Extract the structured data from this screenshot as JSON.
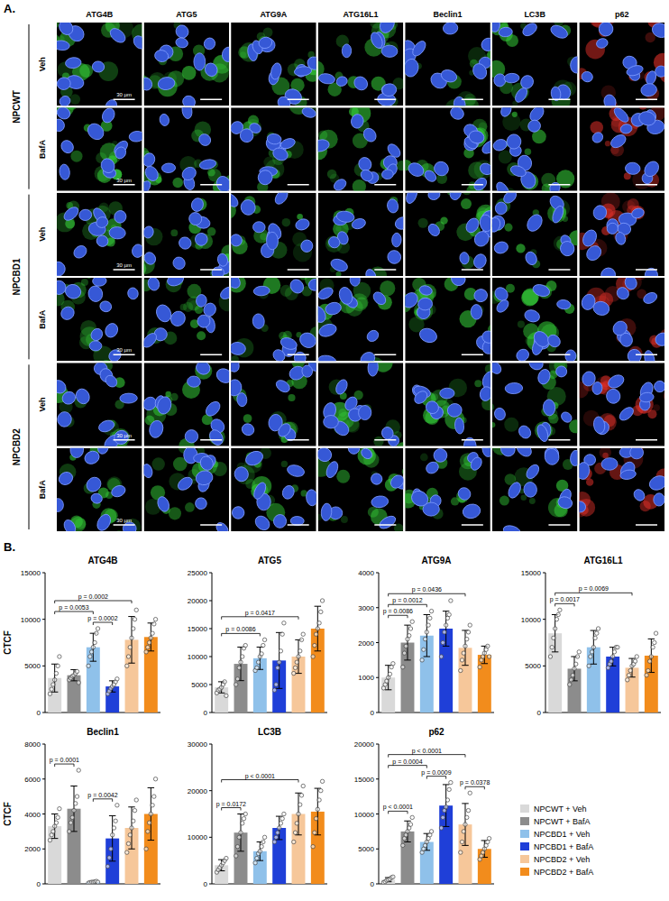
{
  "image_panel": {
    "letter": "A.",
    "columns": [
      "ATG4B",
      "ATG5",
      "ATG9A",
      "ATG16L1",
      "Beclin1",
      "LC3B",
      "p62"
    ],
    "stain_colors": [
      "#36d13a",
      "#36d13a",
      "#36d13a",
      "#36d13a",
      "#36d13a",
      "#36d13a",
      "#e0302a"
    ],
    "groups": [
      "NPCWT",
      "NPCBD1",
      "NPCBD2"
    ],
    "treatments": [
      "Veh",
      "BafA"
    ],
    "scale_bar_label": "30 µm"
  },
  "panel_b_letter": "B.",
  "chart_data": [
    {
      "type": "bar",
      "title": "ATG4B",
      "y_label": "CTCF",
      "legend": "lower right",
      "tick_labels": "y",
      "categories": [
        "NPCWT + Veh",
        "NPCWT + BafA",
        "NPCBD1 + Veh",
        "NPCBD1 + BafA",
        "NPCBD2 + Veh",
        "NPCBD2 + BafA"
      ],
      "colors": [
        "#d9d9d9",
        "#8c8c8c",
        "#8fc1ea",
        "#1f3fd8",
        "#f6c79a",
        "#f28c1c"
      ],
      "values": [
        3700,
        4000,
        7000,
        2800,
        7800,
        8100
      ],
      "errors": [
        1500,
        600,
        1500,
        600,
        2500,
        1500
      ],
      "points": [
        [
          2000,
          2500,
          3000,
          3500,
          4200,
          5000,
          6000
        ],
        [
          3500,
          3700,
          3900,
          4000,
          4200,
          4400,
          3200
        ],
        [
          5000,
          6000,
          6500,
          7000,
          7500,
          8500,
          9000
        ],
        [
          2000,
          2300,
          2600,
          2800,
          3000,
          3300,
          3600
        ],
        [
          5000,
          6000,
          7000,
          8000,
          9000,
          10000,
          11000
        ],
        [
          6500,
          7000,
          7500,
          8000,
          8500,
          9500,
          10000
        ]
      ],
      "ylim": [
        0,
        15000
      ],
      "yticks": [
        0,
        5000,
        10000,
        15000
      ],
      "annotations": [
        {
          "from": 0,
          "to": 4,
          "text": "p = 0.0002"
        },
        {
          "from": 0,
          "to": 2,
          "text": "p = 0.0053"
        },
        {
          "from": 2,
          "to": 3,
          "text": "p = 0.0002"
        }
      ]
    },
    {
      "type": "bar",
      "title": "ATG5",
      "tick_labels": "y",
      "categories": [
        "NPCWT + Veh",
        "NPCWT + BafA",
        "NPCBD1 + Veh",
        "NPCBD1 + BafA",
        "NPCBD2 + Veh",
        "NPCBD2 + BafA"
      ],
      "colors": [
        "#d9d9d9",
        "#8c8c8c",
        "#8fc1ea",
        "#1f3fd8",
        "#f6c79a",
        "#f28c1c"
      ],
      "values": [
        4500,
        8700,
        9700,
        9300,
        10000,
        15000
      ],
      "errors": [
        1000,
        3000,
        2000,
        5000,
        3000,
        4000
      ],
      "points": [
        [
          3500,
          4000,
          4200,
          4500,
          5000,
          5500,
          3000
        ],
        [
          5000,
          6000,
          8000,
          9000,
          10000,
          11500,
          12000
        ],
        [
          7500,
          8000,
          9000,
          10000,
          10500,
          12000,
          13000
        ],
        [
          4000,
          5000,
          8000,
          9000,
          11000,
          14000,
          16000
        ],
        [
          7000,
          8000,
          9000,
          10000,
          11000,
          13000,
          14000
        ],
        [
          10000,
          12000,
          14000,
          15000,
          16000,
          18000,
          20000
        ]
      ],
      "ylim": [
        0,
        25000
      ],
      "yticks": [
        0,
        5000,
        10000,
        15000,
        20000,
        25000
      ],
      "annotations": [
        {
          "from": 0,
          "to": 4,
          "text": "p = 0.0417"
        },
        {
          "from": 0,
          "to": 2,
          "text": "p = 0.0086"
        }
      ]
    },
    {
      "type": "bar",
      "title": "ATG9A",
      "tick_labels": "y",
      "categories": [
        "NPCWT + Veh",
        "NPCWT + BafA",
        "NPCBD1 + Veh",
        "NPCBD1 + BafA",
        "NPCBD2 + Veh",
        "NPCBD2 + BafA"
      ],
      "colors": [
        "#d9d9d9",
        "#8c8c8c",
        "#8fc1ea",
        "#1f3fd8",
        "#f6c79a",
        "#f28c1c"
      ],
      "values": [
        1000,
        2000,
        2200,
        2400,
        1850,
        1650
      ],
      "errors": [
        350,
        500,
        600,
        500,
        500,
        250
      ],
      "points": [
        [
          700,
          800,
          900,
          1000,
          1100,
          1300,
          1400
        ],
        [
          1300,
          1700,
          1900,
          2100,
          2200,
          2400,
          2600
        ],
        [
          1500,
          1800,
          2100,
          2300,
          2500,
          2700,
          2900
        ],
        [
          1600,
          2000,
          2300,
          2500,
          2700,
          2800,
          3200
        ],
        [
          1200,
          1500,
          1700,
          1900,
          2100,
          2300,
          2500
        ],
        [
          1300,
          1500,
          1600,
          1700,
          1800,
          1900,
          1600
        ]
      ],
      "ylim": [
        0,
        4000
      ],
      "yticks": [
        0,
        1000,
        2000,
        3000,
        4000
      ],
      "annotations": [
        {
          "from": 0,
          "to": 1,
          "text": "p = 0.0086"
        },
        {
          "from": 0,
          "to": 2,
          "text": "p = 0.0012"
        },
        {
          "from": 0,
          "to": 4,
          "text": "p = 0.0436"
        }
      ]
    },
    {
      "type": "bar",
      "title": "ATG16L1",
      "tick_labels": "y",
      "categories": [
        "NPCWT + Veh",
        "NPCWT + BafA",
        "NPCBD1 + Veh",
        "NPCBD1 + BafA",
        "NPCBD2 + Veh",
        "NPCBD2 + BafA"
      ],
      "colors": [
        "#d9d9d9",
        "#8c8c8c",
        "#8fc1ea",
        "#1f3fd8",
        "#f6c79a",
        "#f28c1c"
      ],
      "values": [
        8500,
        4700,
        7000,
        6000,
        4800,
        6100
      ],
      "errors": [
        2000,
        1300,
        1800,
        1000,
        1000,
        1800
      ],
      "points": [
        [
          6000,
          7000,
          8000,
          9000,
          10000,
          10500,
          11000
        ],
        [
          3000,
          3500,
          4000,
          4700,
          5200,
          6000,
          6500
        ],
        [
          5000,
          6000,
          6500,
          7000,
          8000,
          8500,
          9000
        ],
        [
          4800,
          5200,
          5500,
          6000,
          6500,
          7000,
          7000
        ],
        [
          3500,
          4000,
          4500,
          5000,
          5200,
          5500,
          6000
        ],
        [
          4000,
          4500,
          5500,
          6000,
          7000,
          7500,
          8500
        ]
      ],
      "ylim": [
        0,
        15000
      ],
      "yticks": [
        0,
        5000,
        10000,
        15000
      ],
      "annotations": [
        {
          "from": 0,
          "to": 1,
          "text": "p = 0.0017"
        },
        {
          "from": 0,
          "to": 4,
          "text": "p = 0.0069"
        }
      ]
    },
    {
      "type": "bar",
      "title": "Beclin1",
      "y_label": "CTCF",
      "tick_labels": "y",
      "categories": [
        "NPCWT + Veh",
        "NPCWT + BafA",
        "NPCBD1 + Veh",
        "NPCBD1 + BafA",
        "NPCBD2 + Veh",
        "NPCBD2 + BafA"
      ],
      "colors": [
        "#d9d9d9",
        "#8c8c8c",
        "#8fc1ea",
        "#1f3fd8",
        "#f6c79a",
        "#f28c1c"
      ],
      "values": [
        3300,
        4300,
        100,
        2600,
        3200,
        4000
      ],
      "errors": [
        700,
        1300,
        50,
        1300,
        1200,
        1500
      ],
      "points": [
        [
          2500,
          2800,
          3000,
          3300,
          3500,
          3800,
          4300
        ],
        [
          3000,
          3500,
          3800,
          4200,
          4600,
          5000,
          6500
        ],
        [
          50,
          80,
          100,
          100,
          120,
          150,
          100
        ],
        [
          1000,
          1500,
          2000,
          2800,
          3200,
          3600,
          4500
        ],
        [
          1800,
          2300,
          2800,
          3200,
          3600,
          4200,
          4800
        ],
        [
          2000,
          3000,
          3500,
          4000,
          4500,
          5000,
          6000
        ]
      ],
      "ylim": [
        0,
        8000
      ],
      "yticks": [
        0,
        2000,
        4000,
        6000,
        8000
      ],
      "annotations": [
        {
          "from": 0,
          "to": 1,
          "text": "p = 0.0001"
        },
        {
          "from": 2,
          "to": 3,
          "text": "p = 0.0042"
        }
      ]
    },
    {
      "type": "bar",
      "title": "LC3B",
      "tick_labels": "y",
      "categories": [
        "NPCWT + Veh",
        "NPCWT + BafA",
        "NPCBD1 + Veh",
        "NPCBD1 + BafA",
        "NPCBD2 + Veh",
        "NPCBD2 + BafA"
      ],
      "colors": [
        "#d9d9d9",
        "#8c8c8c",
        "#8fc1ea",
        "#1f3fd8",
        "#f6c79a",
        "#f28c1c"
      ],
      "values": [
        4000,
        11000,
        7000,
        12000,
        15000,
        15500
      ],
      "errors": [
        1200,
        4000,
        2000,
        2500,
        4500,
        5000
      ],
      "points": [
        [
          2500,
          3000,
          3500,
          4000,
          4500,
          5000,
          5500
        ],
        [
          6000,
          8000,
          10000,
          11000,
          13000,
          14000,
          15000
        ],
        [
          4500,
          5500,
          6500,
          7000,
          8000,
          9000,
          10000
        ],
        [
          9000,
          10000,
          11000,
          12000,
          13000,
          14000,
          15000
        ],
        [
          9000,
          11000,
          13000,
          15000,
          17000,
          19000,
          21000
        ],
        [
          8000,
          11000,
          14000,
          16000,
          18000,
          20000,
          22000
        ]
      ],
      "ylim": [
        0,
        30000
      ],
      "yticks": [
        0,
        10000,
        20000,
        30000
      ],
      "annotations": [
        {
          "from": 0,
          "to": 1,
          "text": "p = 0.0172"
        },
        {
          "from": 0,
          "to": 4,
          "text": "p < 0.0001"
        }
      ]
    },
    {
      "type": "bar",
      "title": "p62",
      "tick_labels": "y",
      "categories": [
        "NPCWT + Veh",
        "NPCWT + BafA",
        "NPCBD1 + Veh",
        "NPCBD1 + BafA",
        "NPCBD2 + Veh",
        "NPCBD2 + BafA"
      ],
      "colors": [
        "#d9d9d9",
        "#8c8c8c",
        "#8fc1ea",
        "#1f3fd8",
        "#f6c79a",
        "#f28c1c"
      ],
      "values": [
        600,
        7500,
        6000,
        11200,
        8500,
        5000
      ],
      "errors": [
        300,
        1500,
        1200,
        3000,
        3000,
        1200
      ],
      "points": [
        [
          200,
          300,
          500,
          600,
          700,
          900,
          1000
        ],
        [
          5500,
          6500,
          7000,
          7500,
          8000,
          8500,
          9500
        ],
        [
          4500,
          5000,
          5500,
          6000,
          6500,
          7000,
          7500
        ],
        [
          8000,
          9500,
          10500,
          11000,
          12000,
          13500,
          14500
        ],
        [
          4500,
          6000,
          7500,
          8500,
          9500,
          10500,
          13000
        ],
        [
          3500,
          4000,
          4500,
          5000,
          5500,
          6000,
          6500
        ]
      ],
      "ylim": [
        0,
        20000
      ],
      "yticks": [
        0,
        5000,
        10000,
        15000,
        20000
      ],
      "annotations": [
        {
          "from": 0,
          "to": 4,
          "text": "p < 0.0001"
        },
        {
          "from": 0,
          "to": 1,
          "text": "p < 0.0001"
        },
        {
          "from": 2,
          "to": 3,
          "text": "p = 0.0009"
        },
        {
          "from": 0,
          "to": 2,
          "text": "p = 0.0004"
        },
        {
          "from": 4,
          "to": 5,
          "text": "p = 0.0378"
        }
      ]
    }
  ]
}
